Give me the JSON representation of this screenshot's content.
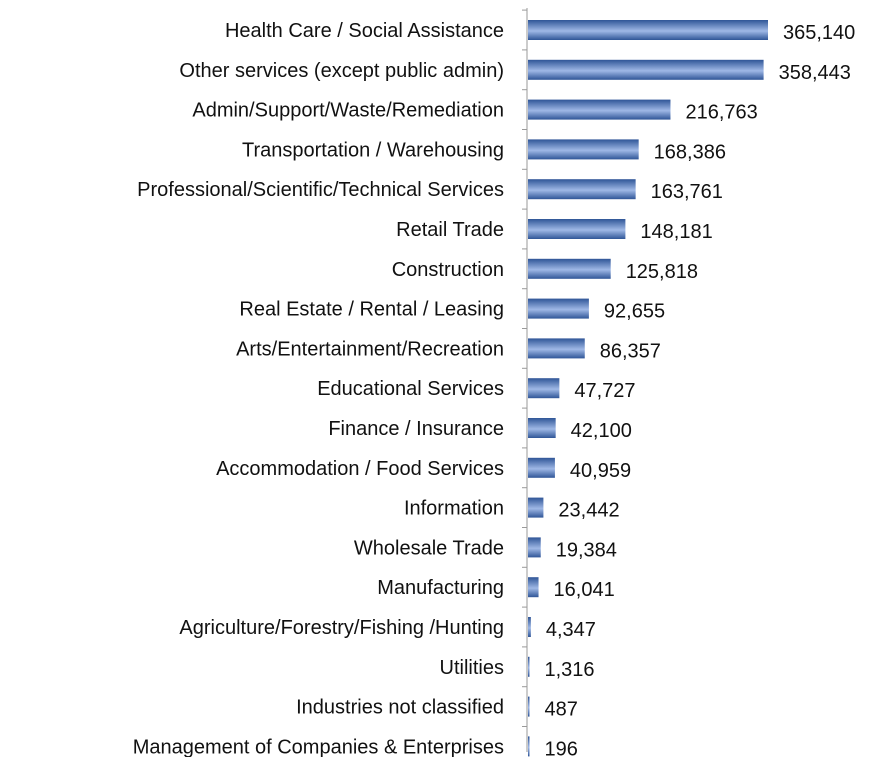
{
  "chart_data": {
    "type": "bar",
    "orientation": "horizontal",
    "title": "",
    "xlabel": "",
    "ylabel": "",
    "legend": "none",
    "grid": false,
    "xlim": [
      0,
      365140
    ],
    "bar_color": "#2f5597",
    "bar_highlight_color": "#9fb8e6",
    "categories": [
      "Health Care / Social Assistance",
      "Other services (except public admin)",
      "Admin/Support/Waste/Remediation",
      "Transportation / Warehousing",
      "Professional/Scientific/Technical Services",
      "Retail Trade",
      "Construction",
      "Real Estate / Rental / Leasing",
      "Arts/Entertainment/Recreation",
      "Educational Services",
      "Finance / Insurance",
      "Accommodation / Food Services",
      "Information",
      "Wholesale Trade",
      "Manufacturing",
      "Agriculture/Forestry/Fishing /Hunting",
      "Utilities",
      "Industries not classified",
      "Management of Companies & Enterprises"
    ],
    "values": [
      365140,
      358443,
      216763,
      168386,
      163761,
      148181,
      125818,
      92655,
      86357,
      47727,
      42100,
      40959,
      23442,
      19384,
      16041,
      4347,
      1316,
      487,
      196
    ],
    "value_labels": [
      "365,140",
      "358,443",
      "216,763",
      "168,386",
      "163,761",
      "148,181",
      "125,818",
      "92,655",
      "86,357",
      "47,727",
      "42,100",
      "40,959",
      "23,442",
      "19,384",
      "16,041",
      "4,347",
      "1,316",
      "487",
      "196"
    ]
  }
}
